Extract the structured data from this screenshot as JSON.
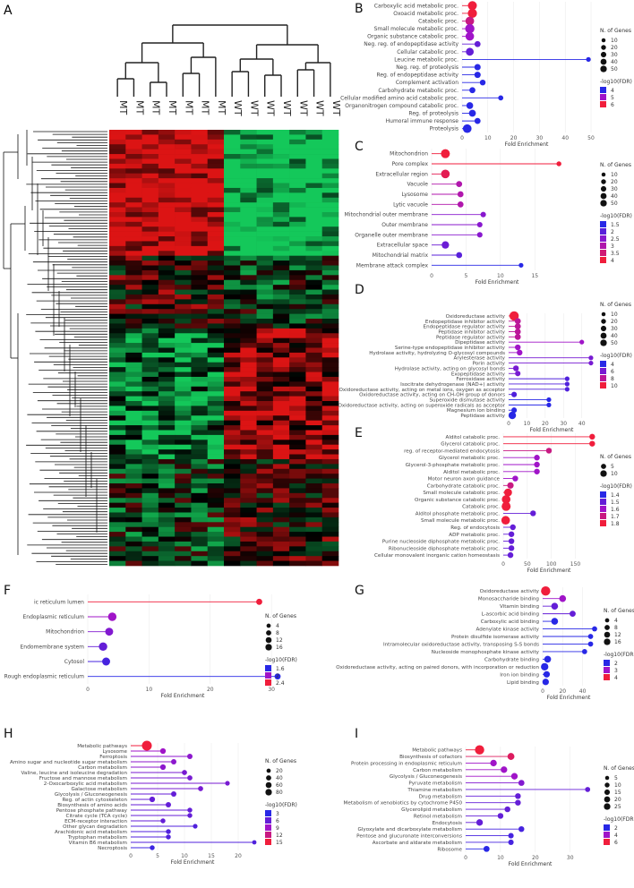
{
  "panel_letters": {
    "A": "A",
    "B": "B",
    "C": "C",
    "D": "D",
    "E": "E",
    "F": "F",
    "G": "G",
    "H": "H",
    "I": "I"
  },
  "legend_size_title": "N. of Genes",
  "legend_color_title": "-log10(FDR)",
  "heatmap": {
    "column_labels": [
      "MT",
      "MT",
      "MT",
      "MT",
      "MT",
      "MT",
      "MT",
      "WT",
      "WT",
      "WT",
      "WT",
      "WT",
      "WT",
      "WT"
    ],
    "rows": 90
  },
  "chart_data": [
    {
      "id": "B",
      "type": "lollipop",
      "labels": [
        "Carboxylic acid metabolic proc.",
        "Oxoacid metabolic proc.",
        "Catabolic proc.",
        "Small molecule metabolic proc.",
        "Organic substance catabolic proc.",
        "Neg. reg. of endopeptidase activity",
        "Cellular catabolic proc.",
        "Leucine metabolic proc.",
        "Neg. reg. of proteolysis",
        "Reg. of endopeptidase activity",
        "Complement activation",
        "Carbohydrate metabolic proc.",
        "Cellular modified amino acid catabolic proc.",
        "Organonitrogen compound catabolic proc.",
        "Reg. of proteolysis",
        "Humoral immune response",
        "Proteolysis"
      ],
      "fold_enrichment": [
        4,
        4,
        3,
        3,
        3,
        6,
        3,
        49,
        6,
        6,
        8,
        4,
        15,
        3,
        4,
        6,
        2
      ],
      "n_genes": [
        45,
        48,
        40,
        50,
        38,
        12,
        30,
        4,
        14,
        14,
        10,
        12,
        6,
        18,
        20,
        12,
        40
      ],
      "neglog10_fdr": [
        6,
        6,
        5.5,
        5,
        5,
        4.5,
        4.5,
        4,
        4,
        4,
        4,
        4,
        4,
        4,
        4,
        4,
        3.5
      ],
      "xlim": [
        0,
        50
      ],
      "xticks": [
        0,
        10,
        20,
        30,
        40,
        50
      ],
      "xlabel": "Fold Enrichment",
      "size_legend": [
        10,
        20,
        30,
        40,
        50
      ],
      "color_legend": [
        4,
        5,
        6
      ]
    },
    {
      "id": "C",
      "type": "lollipop",
      "labels": [
        "Mitochondrion",
        "Pore complex",
        "Extracellular region",
        "Vacuole",
        "Lysosome",
        "Lytic vacuole",
        "Mitochondrial outer membrane",
        "Outer membrane",
        "Organelle outer membrane",
        "Extracellular space",
        "Mitochondrial matrix",
        "Membrane attack complex"
      ],
      "fold_enrichment": [
        2,
        18.5,
        2,
        4,
        4.2,
        4.2,
        7.5,
        7,
        7,
        2,
        4,
        13
      ],
      "n_genes": [
        45,
        5,
        40,
        12,
        12,
        12,
        8,
        8,
        8,
        25,
        12,
        4
      ],
      "neglog10_fdr": [
        4,
        4,
        3.8,
        3,
        3,
        3,
        2.5,
        2.5,
        2.5,
        2.2,
        2,
        1.5
      ],
      "xlim": [
        0,
        19
      ],
      "xticks": [
        0,
        5,
        10,
        15
      ],
      "xlabel": "Fold Enrichment",
      "size_legend": [
        10,
        20,
        30,
        40,
        50
      ],
      "color_legend": [
        1.5,
        2.0,
        2.5,
        3.0,
        3.5,
        4.0
      ]
    },
    {
      "id": "D",
      "type": "lollipop",
      "labels": [
        "Oxidoreductase activity",
        "Endopeptidase inhibitor activity",
        "Endopeptidase regulator activity",
        "Peptidase inhibitor activity",
        "Peptidase regulator activity",
        "Dipeptidase activity",
        "Serine-type endopeptidase inhibitor activity",
        "Hydrolase activity, hydrolyzing O-glycosyl compounds",
        "Arylesterase activity",
        "Porin activity",
        "Hydrolase activity, acting on glycosyl bonds",
        "Exopeptidase activity",
        "Ferroxidase activity",
        "Isocitrate dehydrogenase (NAD+) activity",
        "Oxidoreductase activity, acting on metal ions, oxygen as acceptor",
        "Oxidoreductase activity, acting on CH-OH group of donors",
        "Superoxide dismutase activity",
        "Oxidoreductase activity, acting on superoxide radicals as acceptor",
        "Magnesium ion binding",
        "Peptidase activity"
      ],
      "fold_enrichment": [
        3,
        5,
        5,
        5,
        5,
        40,
        5,
        6,
        45,
        45,
        4,
        5,
        32,
        32,
        32,
        3,
        22,
        22,
        3,
        2
      ],
      "n_genes": [
        50,
        12,
        12,
        12,
        12,
        4,
        10,
        10,
        4,
        4,
        10,
        8,
        4,
        4,
        4,
        8,
        4,
        4,
        8,
        25
      ],
      "neglog10_fdr": [
        10,
        8,
        8,
        8,
        8,
        7,
        7,
        7,
        6,
        6,
        6,
        6,
        5,
        5,
        5,
        5,
        4,
        4,
        4,
        4
      ],
      "xlim": [
        0,
        47
      ],
      "xticks": [
        0,
        10,
        20,
        30,
        40
      ],
      "xlabel": "Fold Enrichment",
      "size_legend": [
        10,
        20,
        30,
        40,
        50
      ],
      "color_legend": [
        4,
        6,
        8,
        10
      ]
    },
    {
      "id": "E",
      "type": "lollipop",
      "labels": [
        "Alditol catabolic proc.",
        "Glycerol catabolic proc.",
        "reg. of receptor-mediated endocytosis",
        "Glycerol metabolic proc.",
        "Glycerol-3-phosphate metabolic proc.",
        "Alditol metabolic proc.",
        "Motor neuron axon guidance",
        "Carbohydrate catabolic proc.",
        "Small molecule catabolic proc.",
        "Organic substance catabolic proc.",
        "Catabolic proc.",
        "Alditol phosphate metabolic proc.",
        "Small molecule metabolic proc.",
        "Reg. of endocytosis",
        "ADP metabolic proc.",
        "Purine nucleoside diphosphate metabolic proc.",
        "Ribonucleoside diphosphate metabolic proc.",
        "Cellular monovalent inorganic cation homeostasis"
      ],
      "fold_enrichment": [
        185,
        185,
        95,
        70,
        70,
        70,
        25,
        15,
        10,
        6,
        6,
        62,
        5,
        20,
        17,
        17,
        17,
        15
      ],
      "n_genes": [
        2,
        2,
        2,
        2,
        2,
        2,
        2,
        3,
        6,
        8,
        9,
        2,
        8,
        2,
        2,
        2,
        2,
        2
      ],
      "neglog10_fdr": [
        1.8,
        1.8,
        1.7,
        1.6,
        1.6,
        1.6,
        1.6,
        1.7,
        1.8,
        1.8,
        1.8,
        1.5,
        1.8,
        1.5,
        1.5,
        1.5,
        1.5,
        1.5
      ],
      "xlim": [
        0,
        190
      ],
      "xticks": [
        0,
        50,
        100,
        150
      ],
      "xlabel": "Fold Enrichment",
      "size_legend": [
        5,
        10
      ],
      "color_legend": [
        1.4,
        1.5,
        1.6,
        1.7,
        1.8
      ]
    },
    {
      "id": "F",
      "type": "lollipop",
      "labels": [
        "ic reticulum lumen",
        "Endoplasmic reticulum",
        "Mitochondrion",
        "Endomembrane system",
        "Cytosol",
        "Rough endoplasmic reticulum"
      ],
      "fold_enrichment": [
        28,
        4,
        3.5,
        2.5,
        3,
        31
      ],
      "n_genes": [
        4,
        12,
        10,
        12,
        10,
        4
      ],
      "neglog10_fdr": [
        2.4,
        2.0,
        1.9,
        1.8,
        1.7,
        1.6
      ],
      "xlim": [
        0,
        31
      ],
      "xticks": [
        0,
        10,
        20,
        30
      ],
      "xlabel": "Fold Enrichment",
      "size_legend": [
        4,
        8,
        12,
        16
      ],
      "color_legend": [
        1.6,
        2.0,
        2.4
      ]
    },
    {
      "id": "G",
      "type": "lollipop",
      "labels": [
        "Oxidoreductase activity",
        "Monosaccharide binding",
        "Vitamin binding",
        "L-ascorbic acid binding",
        "Carboxylic acid binding",
        "Adenylate kinase activity",
        "Protein disulfide isomerase activity",
        "Intramolecular oxidoreductase activity, transposing S-S bonds",
        "Nucleoside monophosphate kinase activity",
        "Carbohydrate binding",
        "Oxidoreductase activity, acting on paired donors, with incorporation or reduction",
        "Iron ion binding",
        "Lipid binding"
      ],
      "fold_enrichment": [
        3,
        20,
        12,
        30,
        12,
        52,
        48,
        48,
        42,
        5,
        2,
        4,
        3
      ],
      "n_genes": [
        16,
        6,
        6,
        4,
        6,
        2,
        2,
        2,
        2,
        6,
        8,
        5,
        5
      ],
      "neglog10_fdr": [
        4,
        3,
        2.5,
        2.5,
        2,
        2,
        2,
        2,
        2,
        2,
        2,
        2,
        2
      ],
      "xlim": [
        0,
        52
      ],
      "xticks": [
        0,
        20,
        40
      ],
      "xlabel": "Fold Enrichment",
      "size_legend": [
        4,
        8,
        12,
        16
      ],
      "color_legend": [
        2,
        3,
        4
      ]
    },
    {
      "id": "H",
      "type": "lollipop",
      "labels": [
        "Metabolic pathways",
        "Lysosome",
        "Ferroptosis",
        "Amino sugar and nucleotide sugar metabolism",
        "Carbon metabolism",
        "Valine, leucine and isoleucine degradation",
        "Fructose and mannose metabolism",
        "2-Oxocarboxylic acid metabolism",
        "Galactose metabolism",
        "Glycolysis / Gluconeogenesis",
        "Reg. of actin cytoskeleton",
        "Biosynthesis of amino acids",
        "Pentose phosphate pathway",
        "Citrate cycle (TCA cycle)",
        "ECM-receptor interaction",
        "Other glycan degradation",
        "Arachidonic acid metabolism",
        "Tryptophan metabolism",
        "Vitamin B6 metabolism",
        "Necroptosis"
      ],
      "fold_enrichment": [
        3,
        6,
        11,
        8,
        6,
        10,
        11,
        18,
        13,
        8,
        4,
        7,
        11,
        11,
        6,
        12,
        7,
        7,
        23,
        4
      ],
      "n_genes": [
        95,
        15,
        12,
        12,
        14,
        10,
        10,
        6,
        10,
        12,
        14,
        12,
        8,
        8,
        8,
        6,
        8,
        8,
        4,
        8
      ],
      "neglog10_fdr": [
        15,
        9,
        8,
        8,
        8,
        7,
        7,
        7,
        7,
        6,
        6,
        6,
        6,
        6,
        6,
        5,
        5,
        5,
        5,
        4
      ],
      "xlim": [
        0,
        23
      ],
      "xticks": [
        0,
        5,
        10,
        15,
        20
      ],
      "xlabel": "Fold Enrichment",
      "size_legend": [
        20,
        40,
        60,
        80
      ],
      "color_legend": [
        3,
        6,
        9,
        12,
        15
      ]
    },
    {
      "id": "I",
      "type": "lollipop",
      "labels": [
        "Metabolic pathways",
        "Biosynthesis of cofactors",
        "Protein processing in endoplasmic reticulum",
        "Carbon metabolism",
        "Glycolysis / Gluconeogenesis",
        "Pyruvate metabolism",
        "Thiamine metabolism",
        "Drug metabolism",
        "Metabolism of xenobiotics by cytochrome P450",
        "Glycerolipid metabolism",
        "Retinol metabolism",
        "Endocytosis",
        "Glyoxylate and dicarboxylate metabolism",
        "Pentose and glucuronate interconversions",
        "Ascorbate and aldarate metabolism",
        "Ribosome"
      ],
      "fold_enrichment": [
        4,
        13,
        8,
        11,
        14,
        16,
        35,
        15,
        15,
        12,
        10,
        4,
        16,
        13,
        13,
        6
      ],
      "n_genes": [
        25,
        10,
        8,
        8,
        8,
        6,
        3,
        5,
        5,
        5,
        5,
        8,
        5,
        4,
        4,
        6
      ],
      "neglog10_fdr": [
        6,
        5.5,
        4,
        4,
        4,
        3.5,
        3,
        3,
        3,
        3,
        3,
        3,
        2.5,
        2.5,
        2.5,
        2
      ],
      "xlim": [
        0,
        37
      ],
      "xticks": [
        0,
        10,
        20,
        30
      ],
      "xlabel": "Fold Enrichment",
      "size_legend": [
        5,
        10,
        15,
        20,
        25
      ],
      "color_legend": [
        2,
        4,
        6
      ]
    }
  ]
}
